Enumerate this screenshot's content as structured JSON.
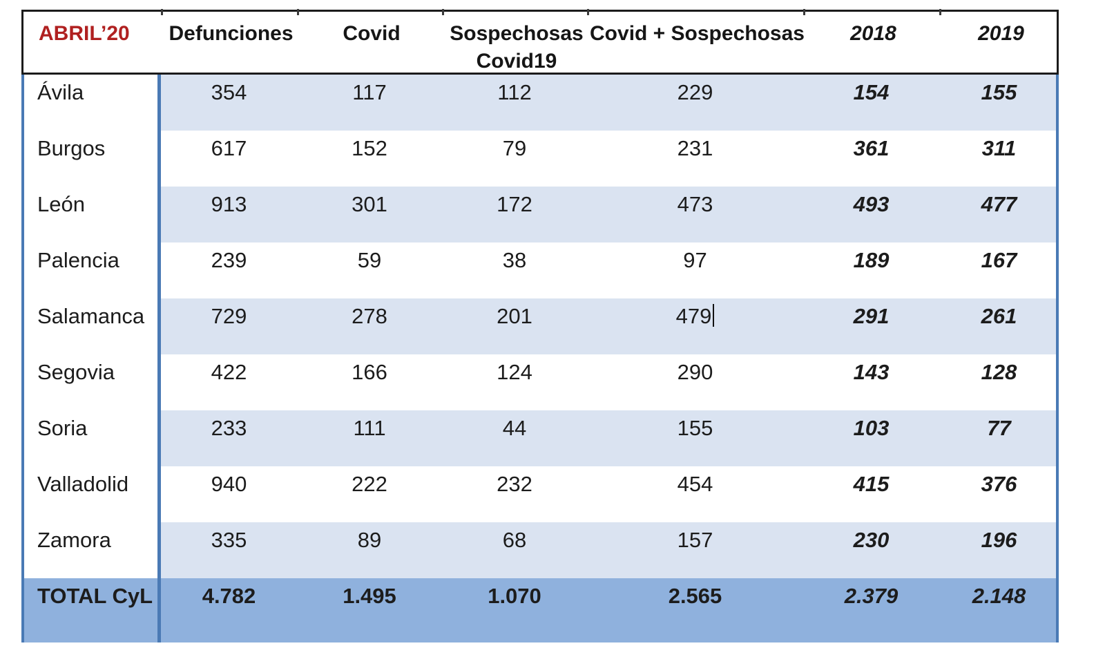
{
  "colors": {
    "stripe": "#dae3f1",
    "total_bg": "#8fb1dd",
    "border_blue": "#4a7ab5",
    "header_red": "#b02020",
    "text": "#1c1c1c"
  },
  "table": {
    "month_label": "ABRIL’20",
    "columns": [
      "Defunciones",
      "Covid",
      "Sospechosas Covid19",
      "Covid + Sospechosas",
      "2018",
      "2019"
    ],
    "rows": [
      {
        "name": "Ávila",
        "cells": [
          "354",
          "117",
          "112",
          "229",
          "154",
          "155"
        ]
      },
      {
        "name": "Burgos",
        "cells": [
          "617",
          "152",
          "79",
          "231",
          "361",
          "311"
        ]
      },
      {
        "name": "León",
        "cells": [
          "913",
          "301",
          "172",
          "473",
          "493",
          "477"
        ]
      },
      {
        "name": "Palencia",
        "cells": [
          "239",
          "59",
          "38",
          "97",
          "189",
          "167"
        ]
      },
      {
        "name": "Salamanca",
        "cells": [
          "729",
          "278",
          "201",
          "479",
          "291",
          "261"
        ]
      },
      {
        "name": "Segovia",
        "cells": [
          "422",
          "166",
          "124",
          "290",
          "143",
          "128"
        ]
      },
      {
        "name": "Soria",
        "cells": [
          "233",
          "111",
          "44",
          "155",
          "103",
          "77"
        ]
      },
      {
        "name": "Valladolid",
        "cells": [
          "940",
          "222",
          "232",
          "454",
          "415",
          "376"
        ]
      },
      {
        "name": "Zamora",
        "cells": [
          "335",
          "89",
          "68",
          "157",
          "230",
          "196"
        ]
      }
    ],
    "total_row": {
      "name": "TOTAL CyL",
      "cells": [
        "4.782",
        "1.495",
        "1.070",
        "2.565",
        "2.379",
        "2.148"
      ]
    }
  }
}
